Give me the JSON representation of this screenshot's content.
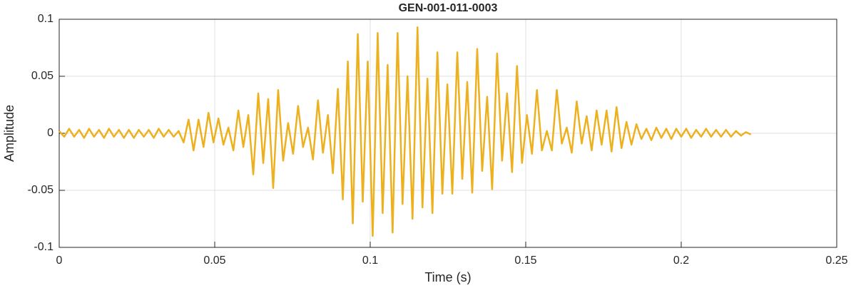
{
  "chart_data": {
    "type": "line",
    "title": "GEN-001-011-0003",
    "xlabel": "Time (s)",
    "ylabel": "Amplitude",
    "x": [
      0,
      0.0016,
      0.0032,
      0.0048,
      0.0064,
      0.008,
      0.0096,
      0.0112,
      0.0128,
      0.0144,
      0.016,
      0.0176,
      0.0192,
      0.0208,
      0.0224,
      0.024,
      0.0256,
      0.0272,
      0.0288,
      0.0304,
      0.032,
      0.0336,
      0.0352,
      0.0368,
      0.0384,
      0.04,
      0.0416,
      0.0432,
      0.0448,
      0.0464,
      0.048,
      0.0496,
      0.0512,
      0.0528,
      0.0544,
      0.056,
      0.0576,
      0.0592,
      0.0608,
      0.0624,
      0.064,
      0.0656,
      0.0672,
      0.0688,
      0.0704,
      0.072,
      0.0736,
      0.0752,
      0.0768,
      0.0784,
      0.08,
      0.0816,
      0.0832,
      0.0848,
      0.0864,
      0.088,
      0.0896,
      0.0912,
      0.0928,
      0.0944,
      0.096,
      0.0976,
      0.0992,
      0.1008,
      0.1024,
      0.104,
      0.1056,
      0.1072,
      0.1088,
      0.1104,
      0.112,
      0.1136,
      0.1152,
      0.1168,
      0.1184,
      0.12,
      0.1216,
      0.1232,
      0.1248,
      0.1264,
      0.128,
      0.1296,
      0.1312,
      0.1328,
      0.1344,
      0.136,
      0.1376,
      0.1392,
      0.1408,
      0.1424,
      0.144,
      0.1456,
      0.1472,
      0.1488,
      0.1504,
      0.152,
      0.1536,
      0.1552,
      0.1568,
      0.1584,
      0.16,
      0.1616,
      0.1632,
      0.1648,
      0.1664,
      0.168,
      0.1696,
      0.1712,
      0.1728,
      0.1744,
      0.176,
      0.1776,
      0.1792,
      0.1808,
      0.1824,
      0.184,
      0.1856,
      0.1872,
      0.1888,
      0.1904,
      0.192,
      0.1936,
      0.1952,
      0.1968,
      0.1984,
      0.2,
      0.2016,
      0.2032,
      0.2048,
      0.2064,
      0.208,
      0.2096,
      0.2112,
      0.2128,
      0.2144,
      0.216,
      0.2176,
      0.2192,
      0.2208,
      0.2224
    ],
    "series": [
      {
        "name": "Amplitude",
        "color": "#edb120",
        "values": [
          0.002,
          -0.003,
          0.004,
          -0.003,
          0.003,
          -0.004,
          0.004,
          -0.003,
          0.003,
          -0.004,
          0.004,
          -0.003,
          0.003,
          -0.004,
          0.003,
          -0.004,
          0.003,
          -0.003,
          0.003,
          -0.004,
          0.004,
          -0.003,
          0.003,
          -0.003,
          0.002,
          -0.008,
          0.012,
          -0.015,
          0.012,
          -0.012,
          0.018,
          -0.008,
          0.013,
          -0.01,
          0.005,
          -0.015,
          0.02,
          -0.012,
          0.016,
          -0.036,
          0.035,
          -0.026,
          0.03,
          -0.048,
          0.038,
          -0.024,
          0.009,
          -0.018,
          0.024,
          -0.012,
          0.005,
          -0.023,
          0.029,
          -0.017,
          0.016,
          -0.035,
          0.039,
          -0.058,
          0.063,
          -0.079,
          0.087,
          -0.06,
          0.063,
          -0.09,
          0.088,
          -0.07,
          0.06,
          -0.087,
          0.088,
          -0.062,
          0.05,
          -0.075,
          0.093,
          -0.065,
          0.048,
          -0.07,
          0.071,
          -0.053,
          0.043,
          -0.053,
          0.071,
          -0.04,
          0.045,
          -0.052,
          0.074,
          -0.033,
          0.032,
          -0.049,
          0.07,
          -0.024,
          0.035,
          -0.034,
          0.059,
          -0.026,
          0.016,
          -0.018,
          0.038,
          -0.015,
          0.002,
          -0.015,
          0.038,
          -0.009,
          0.005,
          -0.017,
          0.028,
          -0.009,
          0.015,
          -0.015,
          0.02,
          -0.01,
          0.02,
          -0.016,
          0.023,
          -0.013,
          0.01,
          -0.01,
          0.008,
          -0.005,
          0.004,
          -0.006,
          0.005,
          -0.004,
          0.004,
          -0.005,
          0.004,
          -0.003,
          0.004,
          -0.004,
          0.003,
          -0.003,
          0.004,
          -0.003,
          0.003,
          -0.003,
          0.003,
          -0.003,
          0.002,
          -0.002,
          0.001,
          -0.001
        ]
      }
    ],
    "xlim": [
      0,
      0.25
    ],
    "xticks": [
      0,
      0.05,
      0.1,
      0.15,
      0.2,
      0.25
    ],
    "ylim": [
      -0.1,
      0.1
    ],
    "yticks": [
      -0.1,
      -0.05,
      0,
      0.05,
      0.1
    ],
    "grid": true
  }
}
